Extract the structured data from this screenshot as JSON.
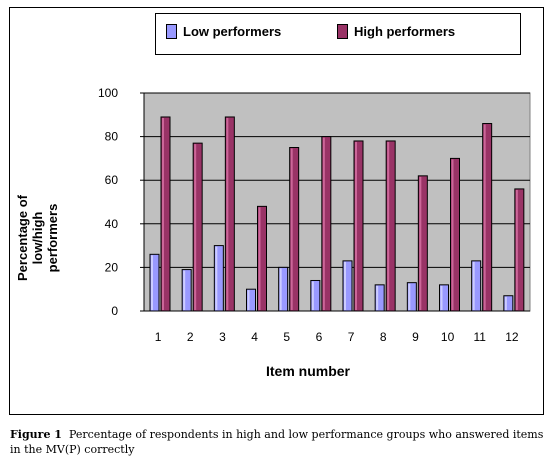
{
  "chart_data": {
    "type": "bar",
    "categories": [
      "1",
      "2",
      "3",
      "4",
      "5",
      "6",
      "7",
      "8",
      "9",
      "10",
      "11",
      "12"
    ],
    "series": [
      {
        "name": "Low performers",
        "color": "#9999ff",
        "values": [
          26,
          19,
          30,
          10,
          20,
          14,
          23,
          12,
          13,
          12,
          23,
          7
        ]
      },
      {
        "name": "High performers",
        "color": "#993366",
        "values": [
          89,
          77,
          89,
          48,
          75,
          80,
          78,
          78,
          62,
          70,
          86,
          56
        ]
      }
    ],
    "xlabel": "Item number",
    "ylabel": "Percentage of low/high performers",
    "ylim": [
      0,
      100
    ],
    "yticks": [
      "0",
      "20",
      "40",
      "60",
      "80",
      "100"
    ],
    "plot_background": "#c0c0c0",
    "grid": true,
    "legend_placement": "top"
  },
  "caption": {
    "label": "Figure 1",
    "text": "Percentage of respondents in high and low performance groups who answered items in the MV(P) correctly"
  }
}
